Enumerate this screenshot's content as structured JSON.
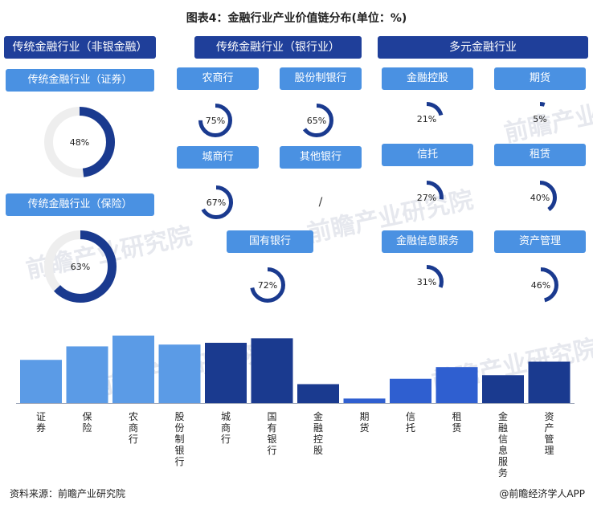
{
  "title": "图表4：金融行业产业价值链分布(单位：%)",
  "headers": {
    "nonbank": "传统金融行业（非银金融）",
    "bank": "传统金融行业（银行业）",
    "diversified": "多元金融行业"
  },
  "watermark": "前瞻产业研究院",
  "source": "资料来源：前瞻产业研究院",
  "brand": "@前瞻经济学人APP",
  "colors": {
    "header": "#1f3f9a",
    "pill": "#4a91e2",
    "ring_fill": "#1a3a8f",
    "ring_track": "#eeeeee"
  },
  "rings": [
    {
      "label": "传统金融行业（证券）",
      "value": 48,
      "text": "48%"
    },
    {
      "label": "传统金融行业（保险）",
      "value": 63,
      "text": "63%"
    },
    {
      "label": "农商行",
      "value": 75,
      "text": "75%"
    },
    {
      "label": "股份制银行",
      "value": 65,
      "text": "65%"
    },
    {
      "label": "城商行",
      "value": 67,
      "text": "67%"
    },
    {
      "label": "其他银行",
      "value": null,
      "text": "/"
    },
    {
      "label": "国有银行",
      "value": 72,
      "text": "72%"
    },
    {
      "label": "金融控股",
      "value": 21,
      "text": "21%"
    },
    {
      "label": "期货",
      "value": 5,
      "text": "5%"
    },
    {
      "label": "信托",
      "value": 27,
      "text": "27%"
    },
    {
      "label": "租赁",
      "value": 40,
      "text": "40%"
    },
    {
      "label": "金融信息服务",
      "value": 31,
      "text": "31%"
    },
    {
      "label": "资产管理",
      "value": 46,
      "text": "46%"
    }
  ],
  "chart_data": {
    "type": "bar",
    "categories": [
      "证券",
      "保险",
      "农商行",
      "股份制银行",
      "城商行",
      "国有银行",
      "金融控股",
      "期货",
      "信托",
      "租赁",
      "金融信息服务",
      "资产管理"
    ],
    "values": [
      48,
      63,
      75,
      65,
      67,
      72,
      21,
      5,
      27,
      40,
      31,
      46
    ],
    "colors": [
      "#5b9be6",
      "#5b9be6",
      "#5b9be6",
      "#5b9be6",
      "#1a3a8f",
      "#1a3a8f",
      "#1a3a8f",
      "#2f5fd0",
      "#2f5fd0",
      "#2f5fd0",
      "#1a3a8f",
      "#1a3a8f"
    ],
    "title": "",
    "xlabel": "",
    "ylabel": "",
    "grid": false
  }
}
